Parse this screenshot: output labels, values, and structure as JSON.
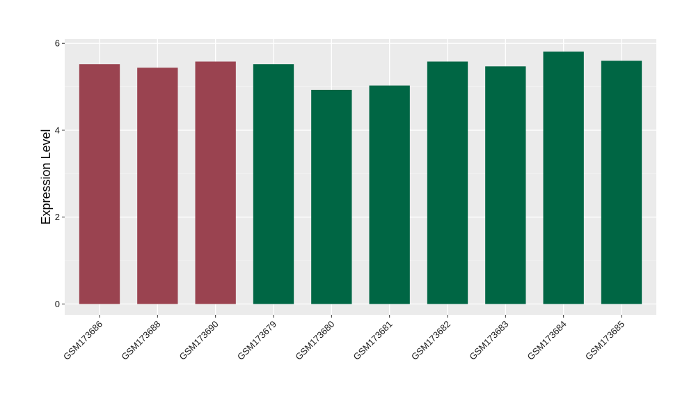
{
  "chart_data": {
    "type": "bar",
    "title": "",
    "xlabel": "",
    "ylabel": "Expression Level",
    "ylim": [
      -0.25,
      6.1
    ],
    "yticks": [
      0,
      2,
      4,
      6
    ],
    "grid": true,
    "background_color": "#ebebeb",
    "categories": [
      "GSM173686",
      "GSM173688",
      "GSM173690",
      "GSM173679",
      "GSM173680",
      "GSM173681",
      "GSM173682",
      "GSM173683",
      "GSM173684",
      "GSM173685"
    ],
    "values": [
      5.52,
      5.44,
      5.58,
      5.52,
      4.93,
      5.03,
      5.58,
      5.47,
      5.81,
      5.6
    ],
    "bar_colors": [
      "#9a4350",
      "#9a4350",
      "#9a4350",
      "#006644",
      "#006644",
      "#006644",
      "#006644",
      "#006644",
      "#006644",
      "#006644"
    ]
  }
}
